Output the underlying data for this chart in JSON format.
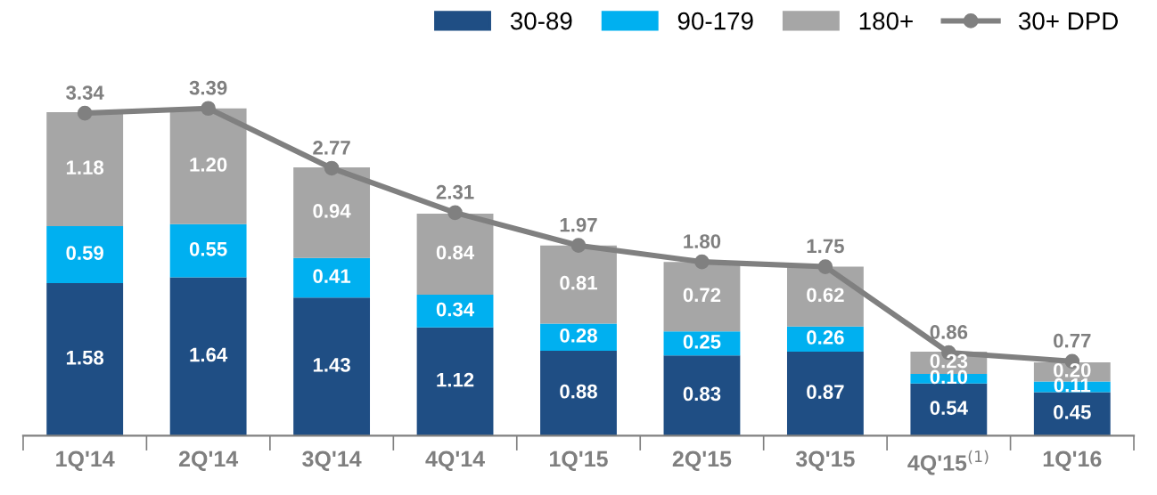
{
  "chart_data": {
    "type": "bar",
    "stacked": true,
    "legend": "top right",
    "grid": false,
    "categories": [
      "1Q'14",
      "2Q'14",
      "3Q'14",
      "4Q'14",
      "1Q'15",
      "2Q'15",
      "3Q'15",
      "4Q'15$^{(1)}$",
      "1Q'16"
    ],
    "series": [
      {
        "name": "30-89",
        "color": "#1f4e84",
        "values": [
          1.58,
          1.64,
          1.43,
          1.12,
          0.88,
          0.83,
          0.87,
          0.54,
          0.45
        ],
        "value_labels": [
          "1.58",
          "1.64",
          "1.43",
          "1.12",
          "0.88",
          "0.83",
          "0.87",
          "0.54",
          "0.45"
        ]
      },
      {
        "name": "90-179",
        "color": "#00b0f0",
        "values": [
          0.59,
          0.55,
          0.41,
          0.34,
          0.28,
          0.25,
          0.26,
          0.1,
          0.11
        ],
        "value_labels": [
          "0.59",
          "0.55",
          "0.41",
          "0.34",
          "0.28",
          "0.25",
          "0.26",
          "0.10",
          "0.11"
        ]
      },
      {
        "name": "180+",
        "color": "#a6a6a6",
        "values": [
          1.18,
          1.2,
          0.94,
          0.84,
          0.81,
          0.72,
          0.62,
          0.23,
          0.2
        ],
        "value_labels": [
          "1.18",
          "1.20",
          "0.94",
          "0.84",
          "0.81",
          "0.72",
          "0.62",
          "0.23",
          "0.20"
        ]
      },
      {
        "name": "30+ DPD",
        "type": "line",
        "color": "#808080",
        "marker": "circle",
        "values": [
          3.34,
          3.39,
          2.77,
          2.31,
          1.97,
          1.8,
          1.75,
          0.86,
          0.77
        ],
        "value_labels": [
          "3.34",
          "3.39",
          "2.77",
          "2.31",
          "1.97",
          "1.80",
          "1.75",
          "0.86",
          "0.77"
        ]
      }
    ]
  }
}
